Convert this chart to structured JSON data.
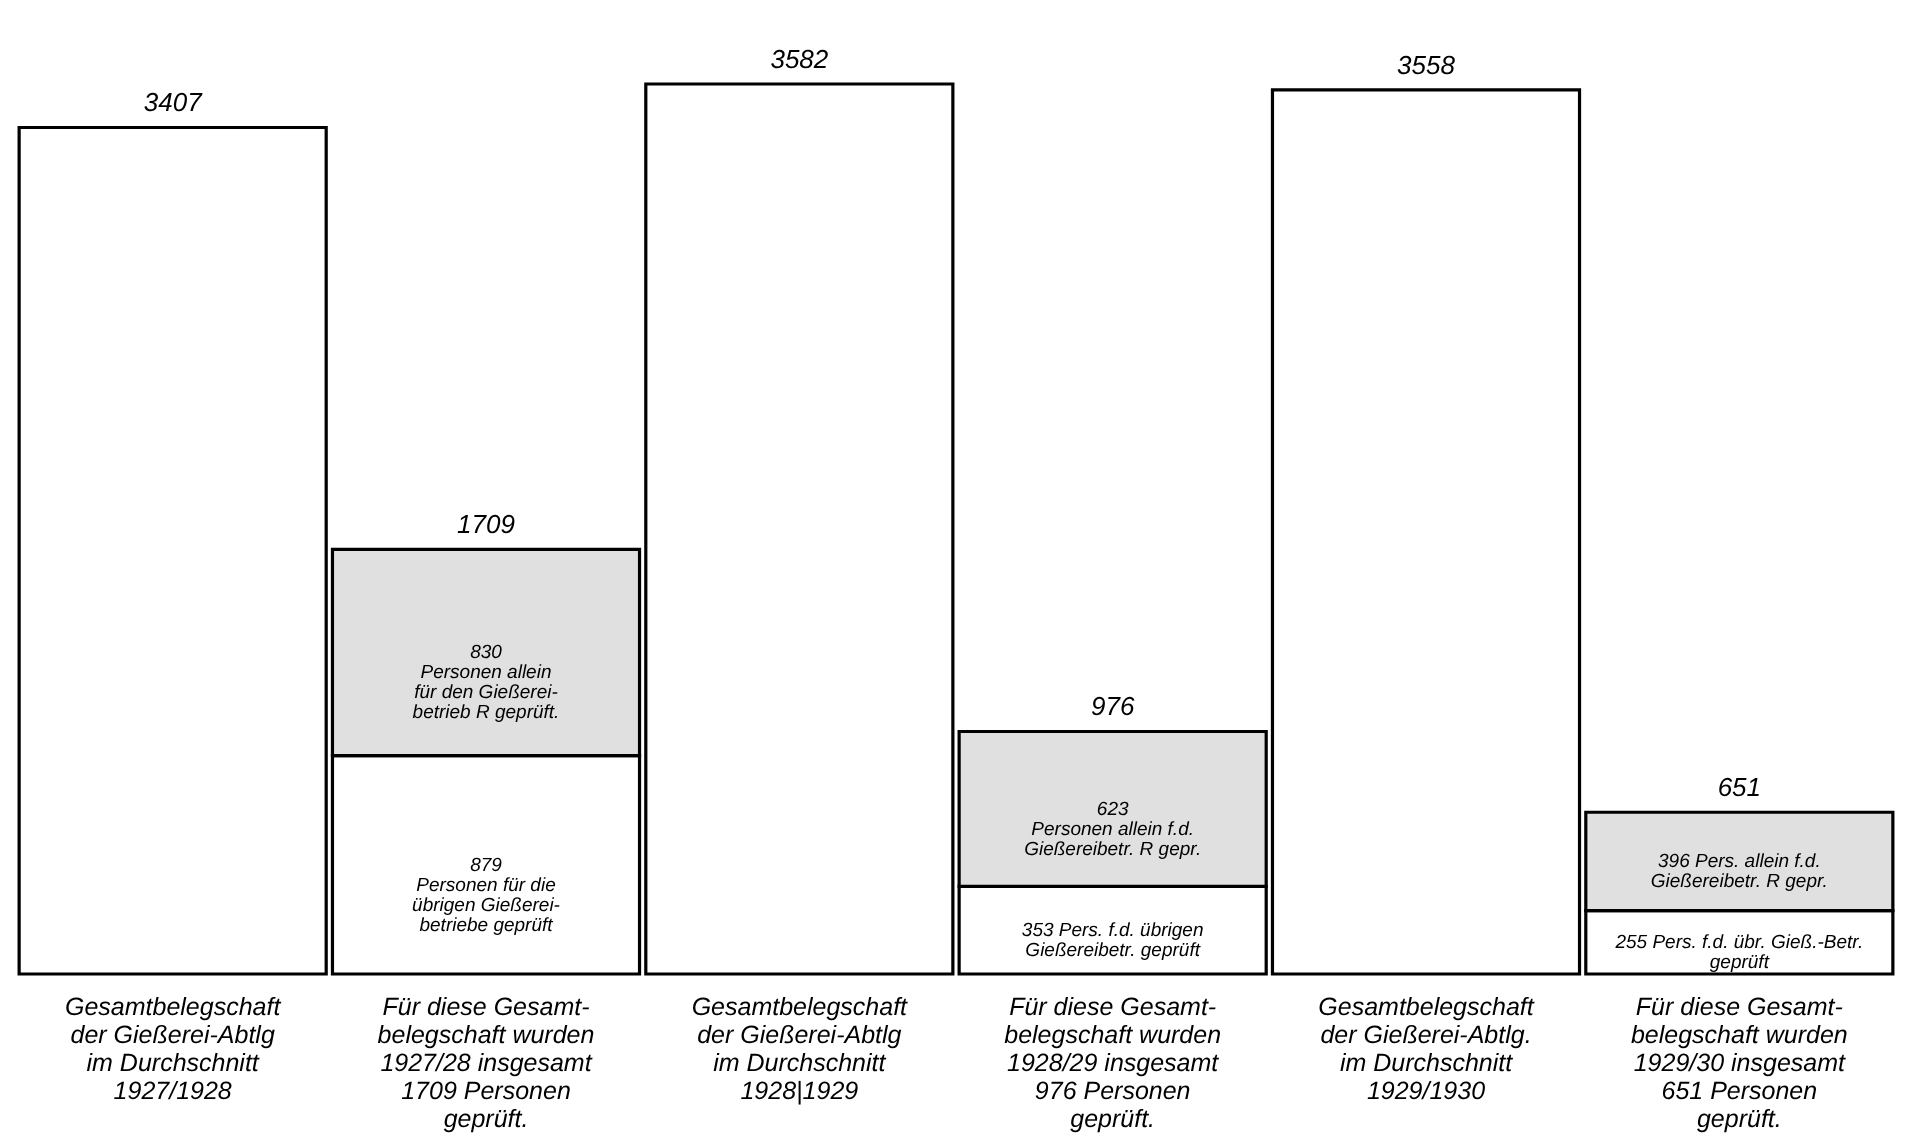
{
  "chart_data": {
    "type": "bar",
    "stacked": true,
    "tick_labels": "x",
    "categories": [
      "Gesamtbelegschaft\nder Gießerei-Abtlg\nim Durchschnitt\n1927/1928",
      "Für diese Gesamt-\nbelegschaft wurden\n1927/28 insgesamt\n1709 Personen\ngeprüft.",
      "Gesamtbelegschaft\nder Gießerei-Abtlg\nim Durchschnitt\n1928|1929",
      "Für diese Gesamt-\nbelegschaft wurden\n1928/29 insgesamt\n976 Personen\ngeprüft.",
      "Gesamtbelegschaft\nder Gießerei-Abtlg.\nim Durchschnitt\n1929/1930",
      "Für diese Gesamt-\nbelegschaft wurden\n1929/30 insgesamt\n651 Personen\ngeprüft."
    ],
    "series": [
      {
        "color": "#ffffff",
        "values": [
          3407,
          null,
          3582,
          null,
          3558,
          null
        ]
      },
      {
        "color": "#ffffff",
        "values": [
          null,
          879,
          null,
          353,
          null,
          255
        ],
        "value_labels": [
          null,
          "879\nPersonen für die\nübrigen Gießerei-\nbetriebe geprüft",
          null,
          "353 Pers. f.d. übrigen\nGießereibetr. geprüft",
          null,
          "255 Pers. f.d. übr. Gieß.-Betr.\ngeprüft"
        ]
      },
      {
        "color": "#e0e0e0",
        "values": [
          null,
          830,
          null,
          623,
          null,
          396
        ],
        "value_labels": [
          null,
          "830\nPersonen allein\nfür den Gießerei-\nbetrieb R geprüft.",
          null,
          "623\nPersonen allein f.d.\nGießereibetr. R gepr.",
          null,
          "396 Pers. allein f.d.\nGießereibetr. R gepr."
        ]
      }
    ],
    "totals": [
      "3407",
      "1709",
      "3582",
      "976",
      "3558",
      "651"
    ]
  }
}
